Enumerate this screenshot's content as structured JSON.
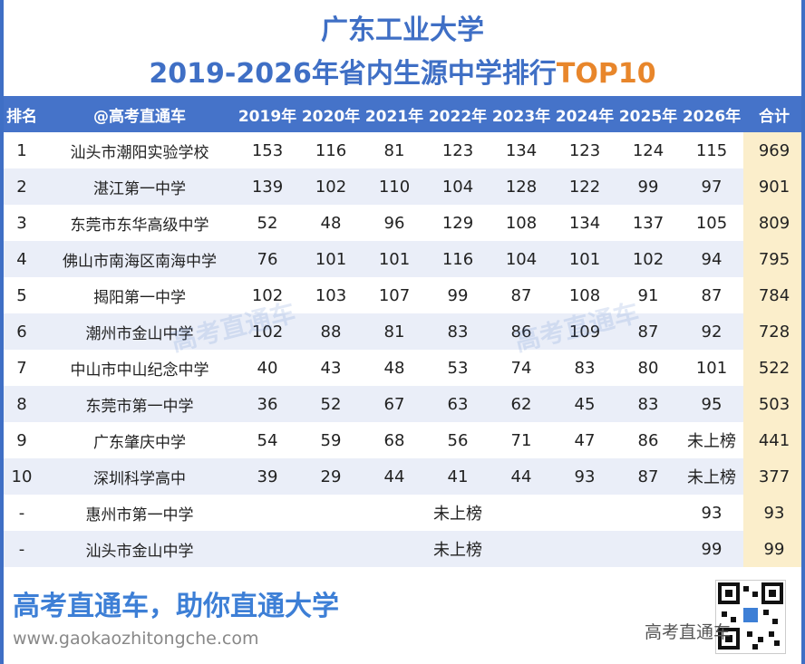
{
  "header": {
    "title_line1": "广东工业大学",
    "title_line2_main": "2019-2026年省内生源中学排行",
    "title_line2_accent": "TOP10"
  },
  "table": {
    "columns": [
      "排名",
      "@高考直通车",
      "2019年",
      "2020年",
      "2021年",
      "2022年",
      "2023年",
      "2024年",
      "2025年",
      "2026年",
      "合计"
    ],
    "rows": [
      {
        "rank": "1",
        "school": "汕头市潮阳实验学校",
        "y2019": "153",
        "y2020": "116",
        "y2021": "81",
        "y2022": "123",
        "y2023": "134",
        "y2024": "123",
        "y2025": "124",
        "y2026": "115",
        "total": "969"
      },
      {
        "rank": "2",
        "school": "湛江第一中学",
        "y2019": "139",
        "y2020": "102",
        "y2021": "110",
        "y2022": "104",
        "y2023": "128",
        "y2024": "122",
        "y2025": "99",
        "y2026": "97",
        "total": "901"
      },
      {
        "rank": "3",
        "school": "东莞市东华高级中学",
        "y2019": "52",
        "y2020": "48",
        "y2021": "96",
        "y2022": "129",
        "y2023": "108",
        "y2024": "134",
        "y2025": "137",
        "y2026": "105",
        "total": "809"
      },
      {
        "rank": "4",
        "school": "佛山市南海区南海中学",
        "y2019": "76",
        "y2020": "101",
        "y2021": "101",
        "y2022": "116",
        "y2023": "104",
        "y2024": "101",
        "y2025": "102",
        "y2026": "94",
        "total": "795"
      },
      {
        "rank": "5",
        "school": "揭阳第一中学",
        "y2019": "102",
        "y2020": "103",
        "y2021": "107",
        "y2022": "99",
        "y2023": "87",
        "y2024": "108",
        "y2025": "91",
        "y2026": "87",
        "total": "784"
      },
      {
        "rank": "6",
        "school": "潮州市金山中学",
        "y2019": "102",
        "y2020": "88",
        "y2021": "81",
        "y2022": "83",
        "y2023": "86",
        "y2024": "109",
        "y2025": "87",
        "y2026": "92",
        "total": "728"
      },
      {
        "rank": "7",
        "school": "中山市中山纪念中学",
        "y2019": "40",
        "y2020": "43",
        "y2021": "48",
        "y2022": "53",
        "y2023": "74",
        "y2024": "83",
        "y2025": "80",
        "y2026": "101",
        "total": "522"
      },
      {
        "rank": "8",
        "school": "东莞市第一中学",
        "y2019": "36",
        "y2020": "52",
        "y2021": "67",
        "y2022": "63",
        "y2023": "62",
        "y2024": "45",
        "y2025": "83",
        "y2026": "95",
        "total": "503"
      },
      {
        "rank": "9",
        "school": "广东肇庆中学",
        "y2019": "54",
        "y2020": "59",
        "y2021": "68",
        "y2022": "56",
        "y2023": "71",
        "y2024": "47",
        "y2025": "86",
        "y2026": "未上榜",
        "total": "441"
      },
      {
        "rank": "10",
        "school": "深圳科学高中",
        "y2019": "39",
        "y2020": "29",
        "y2021": "44",
        "y2022": "41",
        "y2023": "44",
        "y2024": "93",
        "y2025": "87",
        "y2026": "未上榜",
        "total": "377"
      }
    ],
    "extra_rows": [
      {
        "rank": "-",
        "school": "惠州市第一中学",
        "span_text": "未上榜",
        "y2026": "93",
        "total": "93"
      },
      {
        "rank": "-",
        "school": "汕头市金山中学",
        "span_text": "未上榜",
        "y2026": "99",
        "total": "99"
      }
    ]
  },
  "footer": {
    "slogan": "高考直通车，助你直通大学",
    "website": "www.gaokaozhitongche.com",
    "brand": "高考直通车"
  },
  "watermark": "高考直通车",
  "colors": {
    "header_blue": "#4573c9",
    "title_blue": "#3f6fc5",
    "accent_orange": "#e8862b",
    "total_col_bg": "#fbeecb",
    "stripe_bg": "#eaeef8"
  }
}
